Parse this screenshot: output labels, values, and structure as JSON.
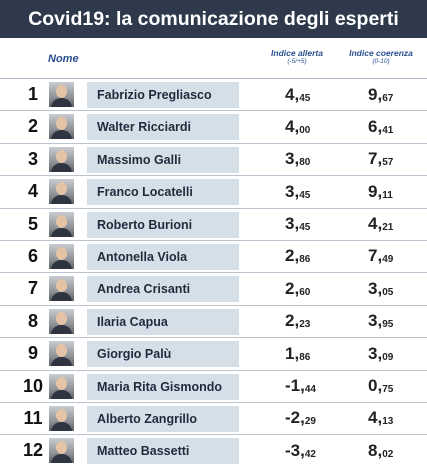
{
  "title": "Covid19: la comunicazione degli esperti",
  "headers": {
    "name": "Nome",
    "allerta": "Indice allerta",
    "allerta_range": "(-5/+5)",
    "coerenza": "Indice coerenza",
    "coerenza_range": "(0-10)"
  },
  "rows": [
    {
      "rank": "1",
      "name": "Fabrizio Pregliasco",
      "allerta_int": "4,",
      "allerta_dec": "45",
      "coerenza_int": "9,",
      "coerenza_dec": "67"
    },
    {
      "rank": "2",
      "name": "Walter Ricciardi",
      "allerta_int": "4,",
      "allerta_dec": "00",
      "coerenza_int": "6,",
      "coerenza_dec": "41"
    },
    {
      "rank": "3",
      "name": "Massimo Galli",
      "allerta_int": "3,",
      "allerta_dec": "80",
      "coerenza_int": "7,",
      "coerenza_dec": "57"
    },
    {
      "rank": "4",
      "name": "Franco Locatelli",
      "allerta_int": "3,",
      "allerta_dec": "45",
      "coerenza_int": "9,",
      "coerenza_dec": "11"
    },
    {
      "rank": "5",
      "name": "Roberto Burioni",
      "allerta_int": "3,",
      "allerta_dec": "45",
      "coerenza_int": "4,",
      "coerenza_dec": "21"
    },
    {
      "rank": "6",
      "name": "Antonella Viola",
      "allerta_int": "2,",
      "allerta_dec": "86",
      "coerenza_int": "7,",
      "coerenza_dec": "49"
    },
    {
      "rank": "7",
      "name": "Andrea Crisanti",
      "allerta_int": "2,",
      "allerta_dec": "60",
      "coerenza_int": "3,",
      "coerenza_dec": "05"
    },
    {
      "rank": "8",
      "name": "Ilaria Capua",
      "allerta_int": "2,",
      "allerta_dec": "23",
      "coerenza_int": "3,",
      "coerenza_dec": "95"
    },
    {
      "rank": "9",
      "name": "Giorgio Palù",
      "allerta_int": "1,",
      "allerta_dec": "86",
      "coerenza_int": "3,",
      "coerenza_dec": "09"
    },
    {
      "rank": "10",
      "name": "Maria Rita Gismondo",
      "allerta_int": "-1,",
      "allerta_dec": "44",
      "coerenza_int": "0,",
      "coerenza_dec": "75"
    },
    {
      "rank": "11",
      "name": "Alberto Zangrillo",
      "allerta_int": "-2,",
      "allerta_dec": "29",
      "coerenza_int": "4,",
      "coerenza_dec": "13"
    },
    {
      "rank": "12",
      "name": "Matteo Bassetti",
      "allerta_int": "-3,",
      "allerta_dec": "42",
      "coerenza_int": "8,",
      "coerenza_dec": "02"
    }
  ]
}
